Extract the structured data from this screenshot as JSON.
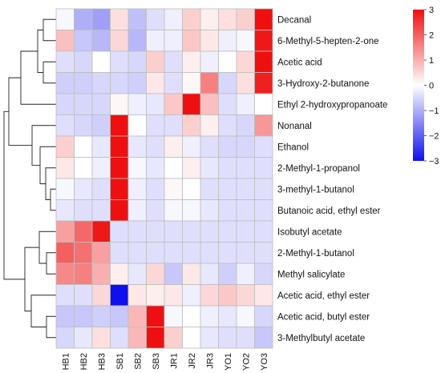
{
  "chart_data": {
    "type": "heatmap",
    "columns": [
      "HB1",
      "HB2",
      "HB3",
      "SB1",
      "SB2",
      "SB3",
      "JR1",
      "JR2",
      "JR3",
      "YO1",
      "YO2",
      "YO3"
    ],
    "rows": [
      "Decanal",
      "6-Methyl-5-hepten-2-one",
      "Acetic acid",
      "3-Hydroxy-2-butanone",
      "Ethyl 2-hydroxypropanoate",
      "Nonanal",
      "Ethanol",
      "2-Methyl-1-propanol",
      "3-methyl-1-butanol",
      "Butanoic acid, ethyl ester",
      "Isobutyl acetate",
      "2-Methyl-1-butanol",
      "Methyl salicylate",
      "Acetic acid, ethyl ester",
      "Acetic acid, butyl ester",
      "3-Methylbutyl acetate"
    ],
    "values": [
      [
        -0.1,
        -1.0,
        -1.2,
        0.4,
        -0.8,
        -0.4,
        -0.2,
        0.6,
        0.2,
        0.4,
        0.6,
        3.0
      ],
      [
        0.8,
        -0.7,
        -0.9,
        0.5,
        -0.9,
        -0.2,
        -0.2,
        0.7,
        0.3,
        -0.2,
        -0.1,
        2.9
      ],
      [
        -0.4,
        -0.5,
        0.0,
        -0.4,
        -0.5,
        0.6,
        -0.4,
        0.2,
        -0.2,
        0.0,
        0.5,
        3.0
      ],
      [
        -0.6,
        -0.6,
        -0.5,
        -0.5,
        -0.6,
        0.3,
        -0.4,
        0.1,
        1.6,
        -0.5,
        0.4,
        2.8
      ],
      [
        -0.5,
        -0.5,
        -0.5,
        0.1,
        -0.2,
        -0.3,
        0.7,
        3.3,
        0.8,
        -0.4,
        -0.2,
        0.0
      ],
      [
        -0.4,
        -0.5,
        -0.6,
        3.0,
        0.0,
        -0.4,
        -0.4,
        0.6,
        0.2,
        -0.4,
        -0.5,
        1.3
      ],
      [
        0.6,
        0.0,
        -0.3,
        3.0,
        -0.3,
        -0.4,
        0.2,
        -0.2,
        -0.4,
        -0.5,
        -0.5,
        -0.4
      ],
      [
        0.3,
        0.0,
        -0.2,
        3.0,
        -0.1,
        -0.3,
        0.0,
        0.2,
        -0.3,
        -0.4,
        -0.4,
        -0.4
      ],
      [
        -0.1,
        -0.3,
        -0.4,
        3.0,
        -0.2,
        -0.4,
        0.1,
        0.0,
        -0.4,
        -0.4,
        -0.4,
        -0.4
      ],
      [
        -0.3,
        -0.4,
        -0.4,
        3.0,
        -0.2,
        -0.4,
        -0.1,
        -0.1,
        -0.3,
        -0.4,
        -0.4,
        -0.4
      ],
      [
        1.2,
        1.9,
        2.9,
        -0.4,
        -0.4,
        -0.4,
        -0.4,
        -0.4,
        -0.4,
        -0.4,
        -0.4,
        -0.4
      ],
      [
        2.0,
        1.8,
        1.2,
        -0.4,
        -0.4,
        -0.4,
        -0.4,
        -0.4,
        -0.4,
        -0.4,
        -0.4,
        -0.4
      ],
      [
        1.5,
        1.6,
        1.0,
        0.2,
        -0.3,
        0.5,
        -0.7,
        0.3,
        -0.3,
        -0.6,
        -0.2,
        -0.5
      ],
      [
        -0.4,
        -0.4,
        0.5,
        -3.0,
        0.3,
        0.2,
        0.3,
        -0.2,
        0.5,
        0.7,
        0.5,
        0.3
      ],
      [
        -0.7,
        -0.7,
        -0.6,
        -0.7,
        0.9,
        3.0,
        -0.1,
        0.0,
        -0.2,
        -0.3,
        -0.1,
        -0.5
      ],
      [
        -0.5,
        -0.3,
        0.4,
        -0.4,
        0.9,
        3.0,
        0.6,
        0.0,
        -0.3,
        -0.4,
        -0.4,
        -0.7
      ]
    ],
    "colorscale": {
      "min": -3,
      "max": 3,
      "low": "#1010ee",
      "mid": "#ffffff",
      "high": "#ee1010"
    },
    "colorbar_ticks": [
      3,
      2,
      1,
      0,
      -1,
      -2,
      -3
    ],
    "row_dendrogram": true
  }
}
